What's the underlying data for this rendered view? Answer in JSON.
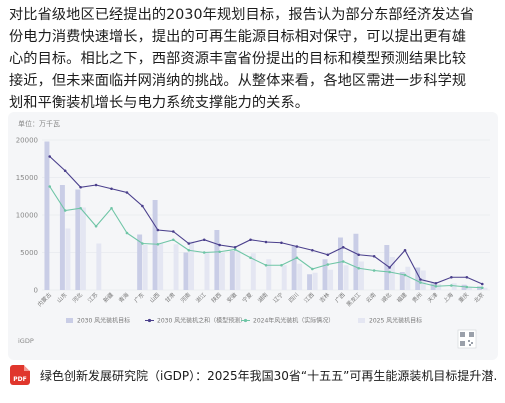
{
  "article": {
    "paragraph_lines": [
      "对比省级地区已经提出的2030年规划目标，报告认为部分东部经济发达省",
      "份电力消费快速增长，提出的可再生能源目标相对保守，可以提出更有雄",
      "心的目标。相比之下，西部资源丰富省份提出的目标和模型预测结果比较",
      "接近，但未来面临并网消纳的挑战。从整体来看，各地区需进一步科学规",
      "划和平衡装机增长与电力系统支撑能力的关系。"
    ]
  },
  "chart_card": {
    "unit": "单位：万千瓦",
    "source": "iGDP",
    "logo_name": "qr-code-icon"
  },
  "chart_data": {
    "type": "bar",
    "unit_label": "单位：万千瓦",
    "ylim": [
      0,
      20000
    ],
    "yticks": [
      "0",
      "5000",
      "10000",
      "15000",
      "20000"
    ],
    "grid": true,
    "legend_position": "bottom",
    "categories": [
      "内蒙古",
      "山东",
      "河北",
      "江苏",
      "新疆",
      "青海",
      "广东",
      "山西",
      "甘肃",
      "河南",
      "浙江",
      "陕西",
      "安徽",
      "宁夏",
      "湖南",
      "辽宁",
      "四川",
      "江西",
      "吉林",
      "广西",
      "黑龙江",
      "云南",
      "湖北",
      "福建",
      "贵州",
      "天津",
      "上海",
      "重庆",
      "北京"
    ],
    "series": [
      {
        "name": "2030 风光装机目标",
        "kind": "bar",
        "color": "#c9cde6",
        "values": [
          19800,
          14000,
          13400,
          null,
          null,
          null,
          7400,
          12000,
          null,
          5000,
          null,
          8000,
          5200,
          null,
          null,
          null,
          5900,
          2100,
          4100,
          7000,
          7500,
          null,
          6000,
          2400,
          3000,
          900,
          null,
          700,
          500
        ]
      },
      {
        "name": "2030 风光装机之和（模型预测）",
        "kind": "line",
        "color": "#4a3f8c",
        "values": [
          17800,
          15900,
          13700,
          14000,
          13500,
          13000,
          11200,
          8000,
          7800,
          6200,
          6700,
          6000,
          5700,
          6700,
          6400,
          6300,
          5800,
          5300,
          4700,
          5700,
          4700,
          4500,
          3000,
          5300,
          1400,
          900,
          1700,
          1700,
          800
        ]
      },
      {
        "name": "2024年风光装机（实际情况）",
        "kind": "line",
        "color": "#6fc5a6",
        "values": [
          13800,
          10600,
          10900,
          8500,
          10900,
          7600,
          6200,
          6100,
          6700,
          5300,
          5000,
          5100,
          5400,
          4300,
          3300,
          3300,
          4300,
          2800,
          3400,
          3800,
          2900,
          2600,
          2400,
          2000,
          1000,
          500,
          600,
          400,
          300
        ]
      },
      {
        "name": "2025 风光装机目标",
        "kind": "bar",
        "color": "#e4e6f2",
        "values": [
          null,
          8200,
          11000,
          6200,
          null,
          null,
          6000,
          6300,
          6100,
          6500,
          5100,
          5000,
          5300,
          4900,
          4100,
          3300,
          3500,
          2300,
          2700,
          3300,
          3800,
          null,
          4400,
          3100,
          2600,
          800,
          900,
          400,
          300
        ]
      }
    ]
  },
  "reference": {
    "icon_label": "PDF",
    "text": "绿色创新发展研究院（iGDP）：2025年我国30省“十五五”可再生能源装机目标提升潜…"
  }
}
